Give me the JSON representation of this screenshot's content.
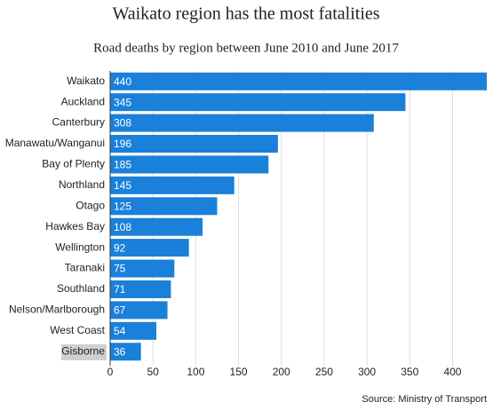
{
  "chart_data": {
    "type": "barh",
    "title": "Waikato region has the most fatalities",
    "subtitle": "Road deaths by region between June 2010 and June 2017",
    "categories": [
      "Waikato",
      "Auckland",
      "Canterbury",
      "Manawatu/Wanganui",
      "Bay of Plenty",
      "Northland",
      "Otago",
      "Hawkes Bay",
      "Wellington",
      "Taranaki",
      "Southland",
      "Nelson/Marlborough",
      "West Coast",
      "Gisborne"
    ],
    "values": [
      440,
      345,
      308,
      196,
      185,
      145,
      125,
      108,
      92,
      75,
      71,
      67,
      54,
      36
    ],
    "color": "#1a80d9",
    "xlim": [
      0,
      440
    ],
    "xticks": [
      0,
      50,
      100,
      150,
      200,
      250,
      300,
      350,
      400
    ],
    "grid": true,
    "source": "Source: Ministry of Transport"
  }
}
